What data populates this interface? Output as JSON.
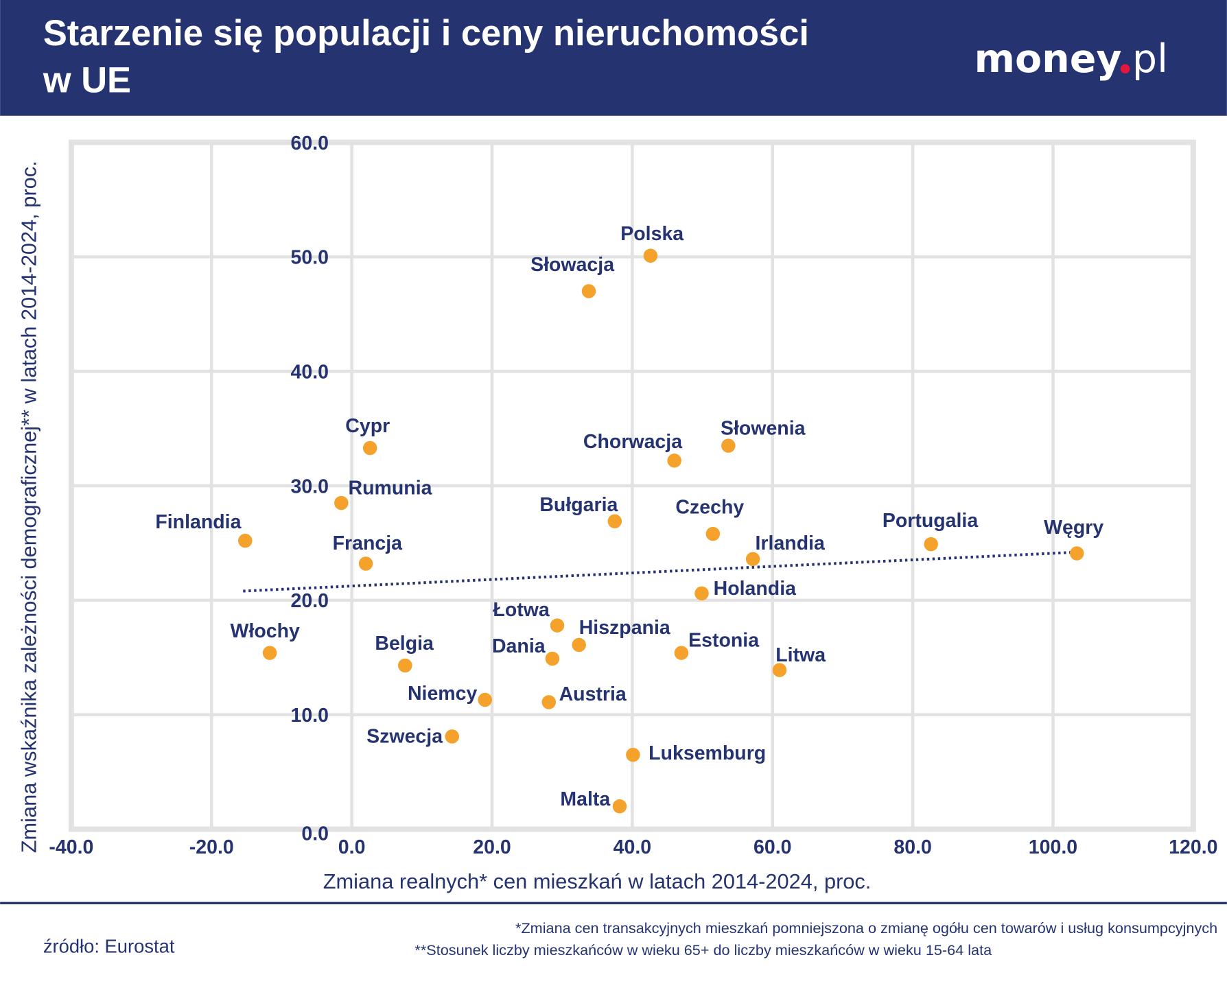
{
  "header": {
    "title_line1": "Starzenie się populacji i ceny nieruchomości",
    "title_line2": "w UE",
    "logo_text": "money.pl",
    "background_color": "#253370"
  },
  "chart_data": {
    "type": "scatter",
    "xlabel": "Zmiana realnych* cen mieszkań w latach 2014-2024, proc.",
    "ylabel": "Zmiana wskaźnika zależności demograficznej** w latach 2014-2024, proc.",
    "xlim": [
      -40,
      120
    ],
    "ylim": [
      0,
      60
    ],
    "x_ticks": [
      "-40.0",
      "-20.0",
      "0.0",
      "20.0",
      "40.0",
      "60.0",
      "80.0",
      "100.0",
      "120.0"
    ],
    "y_ticks": [
      "0.0",
      "10.0",
      "20.0",
      "30.0",
      "40.0",
      "50.0",
      "60.0"
    ],
    "grid": true,
    "point_color": "#f5a22d",
    "text_color": "#253370",
    "points": [
      {
        "label": "Polska",
        "x": 42.6,
        "y": 50.1
      },
      {
        "label": "Słowacja",
        "x": 33.8,
        "y": 47.0
      },
      {
        "label": "Cypr",
        "x": 2.6,
        "y": 33.3
      },
      {
        "label": "Rumunia",
        "x": -1.5,
        "y": 28.5
      },
      {
        "label": "Finlandia",
        "x": -15.2,
        "y": 25.2
      },
      {
        "label": "Francja",
        "x": 2.0,
        "y": 23.2
      },
      {
        "label": "Chorwacja",
        "x": 46.0,
        "y": 32.2
      },
      {
        "label": "Słowenia",
        "x": 53.7,
        "y": 33.5
      },
      {
        "label": "Bułgaria",
        "x": 37.5,
        "y": 26.9
      },
      {
        "label": "Czechy",
        "x": 51.5,
        "y": 25.8
      },
      {
        "label": "Irlandia",
        "x": 57.2,
        "y": 23.6
      },
      {
        "label": "Portugalia",
        "x": 82.6,
        "y": 24.9
      },
      {
        "label": "Węgry",
        "x": 103.4,
        "y": 24.1
      },
      {
        "label": "Holandia",
        "x": 49.9,
        "y": 20.6
      },
      {
        "label": "Łotwa",
        "x": 29.3,
        "y": 17.8
      },
      {
        "label": "Hiszpania",
        "x": 32.4,
        "y": 16.1
      },
      {
        "label": "Dania",
        "x": 28.6,
        "y": 14.9
      },
      {
        "label": "Estonia",
        "x": 47.0,
        "y": 15.4
      },
      {
        "label": "Litwa",
        "x": 61.0,
        "y": 13.9
      },
      {
        "label": "Włochy",
        "x": -11.7,
        "y": 15.4
      },
      {
        "label": "Belgia",
        "x": 7.6,
        "y": 14.3
      },
      {
        "label": "Niemcy",
        "x": 19.0,
        "y": 11.3
      },
      {
        "label": "Austria",
        "x": 28.1,
        "y": 11.1
      },
      {
        "label": "Szwecja",
        "x": 14.3,
        "y": 8.1
      },
      {
        "label": "Luksemburg",
        "x": 40.1,
        "y": 6.5
      },
      {
        "label": "Malta",
        "x": 38.2,
        "y": 2.0
      }
    ],
    "trendline": {
      "style": "dotted",
      "color": "#253370",
      "from": {
        "x": -15.5,
        "y": 20.8
      },
      "to": {
        "x": 103.4,
        "y": 24.2
      }
    }
  },
  "footer": {
    "note1": "*Zmiana cen transakcyjnych mieszkań pomniejszona o zmianę ogółu cen towarów i usług konsumpcyjnych",
    "note2": "**Stosunek liczby mieszkańców w wieku 65+ do liczby mieszkańców w wieku 15-64 lata",
    "source": "źródło: Eurostat"
  }
}
